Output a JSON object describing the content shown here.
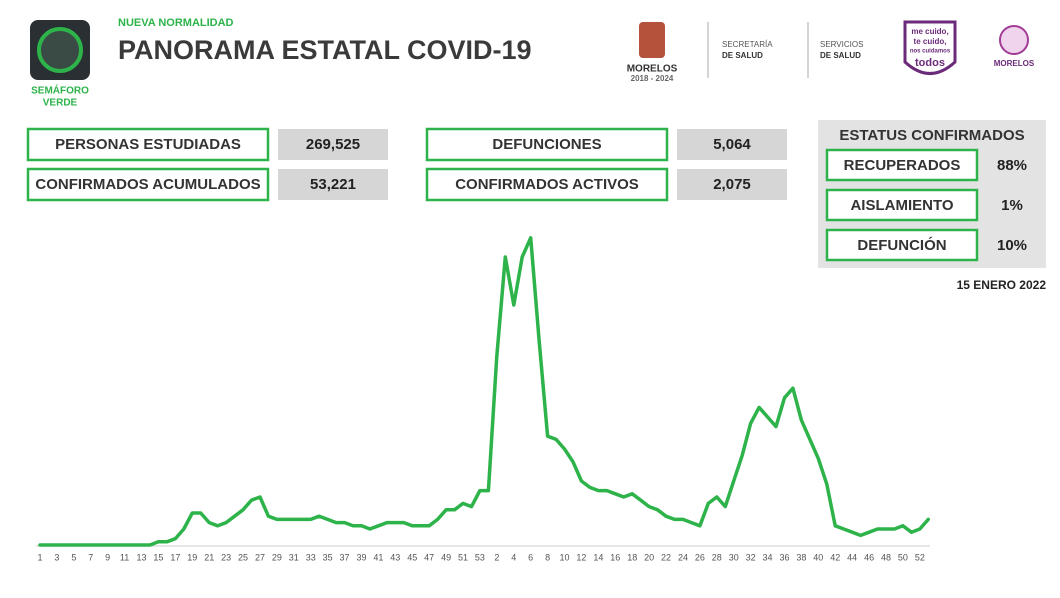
{
  "header": {
    "subtitle": "NUEVA NORMALIDAD",
    "title": "PANORAMA ESTATAL COVID-19",
    "semaforo": [
      "SEMÁFORO",
      "VERDE"
    ]
  },
  "logos": {
    "morelos": "MORELOS",
    "years": "2018 - 2024",
    "secretaria": [
      "SECRETARÍA",
      "DE SALUD"
    ],
    "servicios": [
      "SERVICIOS",
      "DE SALUD"
    ],
    "campaign": [
      "me cuido,",
      "te cuido,",
      "nos cuidamos",
      "todos"
    ],
    "morelos2": "MORELOS"
  },
  "stats": [
    {
      "label": "PERSONAS ESTUDIADAS",
      "value": "269,525"
    },
    {
      "label": "CONFIRMADOS ACUMULADOS",
      "value": "53,221"
    },
    {
      "label": "DEFUNCIONES",
      "value": "5,064"
    },
    {
      "label": "CONFIRMADOS ACTIVOS",
      "value": "2,075"
    }
  ],
  "status": {
    "title": "ESTATUS CONFIRMADOS",
    "rows": [
      {
        "label": "RECUPERADOS",
        "value": "88%"
      },
      {
        "label": "AISLAMIENTO",
        "value": "1%"
      },
      {
        "label": "DEFUNCIÓN",
        "value": "10%"
      }
    ]
  },
  "date": "15 ENERO 2022",
  "chart_data": {
    "type": "line",
    "color": "#2db34a",
    "categories": [
      "1",
      null,
      "3",
      null,
      "5",
      null,
      "7",
      null,
      "9",
      null,
      "11",
      null,
      "13",
      null,
      "15",
      null,
      "17",
      null,
      "19",
      null,
      "21",
      null,
      "23",
      null,
      "25",
      null,
      "27",
      null,
      "29",
      null,
      "31",
      null,
      "33",
      null,
      "35",
      null,
      "37",
      null,
      "39",
      null,
      "41",
      null,
      "43",
      null,
      "45",
      null,
      "47",
      null,
      "49",
      null,
      "51",
      null,
      "53",
      null,
      "2",
      null,
      "4",
      null,
      "6",
      null,
      "8",
      null,
      "10",
      null,
      "12",
      null,
      "14",
      null,
      "16",
      null,
      "18",
      null,
      "20",
      null,
      "22",
      null,
      "24",
      null,
      "26",
      null,
      "28",
      null,
      "30",
      null,
      "32",
      null,
      "34",
      null,
      "36",
      null,
      "38",
      null,
      "40",
      null,
      "42",
      null,
      "44",
      null,
      "46",
      null,
      "48",
      null,
      "50",
      null,
      "52",
      null
    ],
    "values": [
      0,
      0,
      0,
      0,
      0,
      0,
      0,
      0,
      0,
      0,
      0,
      0,
      0,
      0,
      1,
      1,
      2,
      5,
      10,
      10,
      7,
      6,
      7,
      9,
      11,
      14,
      15,
      9,
      8,
      8,
      8,
      8,
      8,
      9,
      8,
      7,
      7,
      6,
      6,
      5,
      6,
      7,
      7,
      7,
      6,
      6,
      6,
      8,
      11,
      11,
      13,
      12,
      17,
      17,
      59,
      90,
      75,
      90,
      96,
      64,
      34,
      33,
      30,
      26,
      20,
      18,
      17,
      17,
      16,
      15,
      16,
      14,
      12,
      11,
      9,
      8,
      8,
      7,
      6,
      13,
      15,
      12,
      20,
      28,
      38,
      43,
      40,
      37,
      46,
      49,
      39,
      33,
      27,
      19,
      6,
      5,
      4,
      3,
      4,
      5,
      5,
      5,
      6,
      4,
      5,
      8
    ],
    "ylim": [
      0,
      100
    ]
  }
}
